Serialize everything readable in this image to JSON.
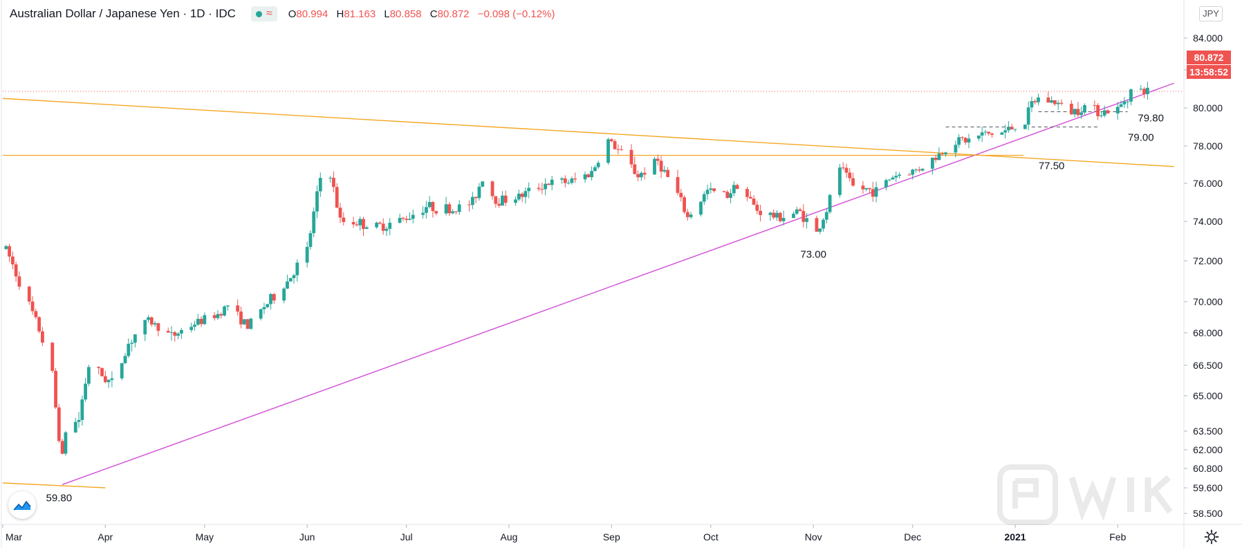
{
  "header": {
    "title": "Australian Dollar / Japanese Yen · 1D · IDC",
    "status_icon": "market-status-dot-icon",
    "wave_icon": "wave-icon",
    "ohlc": {
      "o_label": "O",
      "o_value": "80.994",
      "h_label": "H",
      "h_value": "81.163",
      "l_label": "L",
      "l_value": "80.858",
      "c_label": "C",
      "c_value": "80.872",
      "change": "−0.098 (−0.12%)"
    }
  },
  "currency_badge": "JPY",
  "price_label": "80.872",
  "countdown_label": "13:58:52",
  "colors": {
    "bull": "#26a69a",
    "bear": "#ef5350",
    "trendline_support": "#d24cd7",
    "trendline_orange": "#f5a623",
    "price_line": "#ef5350",
    "axis_text": "#131722"
  },
  "chart_data": {
    "type": "candlestick",
    "symbol": "AUDJPY",
    "interval": "1D",
    "x_range": [
      "2020-03-01",
      "2021-02-21"
    ],
    "y_ticks": [
      84.0,
      82.0,
      80.0,
      78.0,
      76.0,
      74.0,
      72.0,
      70.0,
      68.0,
      66.5,
      65.0,
      63.5,
      62.0,
      60.8,
      59.6,
      58.5
    ],
    "y_tick_labels": [
      "84.000",
      "82.000",
      "80.000",
      "78.000",
      "76.000",
      "74.000",
      "72.000",
      "70.000",
      "68.000",
      "66.500",
      "65.000",
      "63.500",
      "62.000",
      "60.800",
      "59.600",
      "58.500"
    ],
    "x_ticks": [
      {
        "date": "2020-03-01",
        "label": "Mar"
      },
      {
        "date": "2020-04-01",
        "label": "Apr"
      },
      {
        "date": "2020-05-01",
        "label": "May"
      },
      {
        "date": "2020-06-01",
        "label": "Jun"
      },
      {
        "date": "2020-07-01",
        "label": "Jul"
      },
      {
        "date": "2020-08-01",
        "label": "Aug"
      },
      {
        "date": "2020-09-01",
        "label": "Sep"
      },
      {
        "date": "2020-10-01",
        "label": "Oct"
      },
      {
        "date": "2020-11-01",
        "label": "Nov"
      },
      {
        "date": "2020-12-01",
        "label": "Dec"
      },
      {
        "date": "2021-01-01",
        "label": "2021"
      },
      {
        "date": "2021-02-01",
        "label": "Feb"
      }
    ],
    "price_path": [
      [
        "2020-03-02",
        72.6
      ],
      [
        "2020-03-05",
        71.4
      ],
      [
        "2020-03-09",
        69.8
      ],
      [
        "2020-03-12",
        68.2
      ],
      [
        "2020-03-16",
        66.0
      ],
      [
        "2020-03-19",
        61.5
      ],
      [
        "2020-03-20",
        63.5
      ],
      [
        "2020-03-24",
        64.0
      ],
      [
        "2020-03-27",
        66.5
      ],
      [
        "2020-03-31",
        66.0
      ],
      [
        "2020-04-03",
        65.6
      ],
      [
        "2020-04-08",
        67.5
      ],
      [
        "2020-04-14",
        68.8
      ],
      [
        "2020-04-21",
        67.8
      ],
      [
        "2020-04-28",
        68.6
      ],
      [
        "2020-05-05",
        69.2
      ],
      [
        "2020-05-08",
        69.8
      ],
      [
        "2020-05-14",
        68.4
      ],
      [
        "2020-05-19",
        69.7
      ],
      [
        "2020-05-26",
        71.0
      ],
      [
        "2020-06-01",
        72.5
      ],
      [
        "2020-06-05",
        76.3
      ],
      [
        "2020-06-08",
        76.5
      ],
      [
        "2020-06-11",
        74.0
      ],
      [
        "2020-06-15",
        74.0
      ],
      [
        "2020-06-22",
        73.7
      ],
      [
        "2020-06-30",
        74.1
      ],
      [
        "2020-07-07",
        74.8
      ],
      [
        "2020-07-15",
        74.6
      ],
      [
        "2020-07-21",
        75.0
      ],
      [
        "2020-07-24",
        76.3
      ],
      [
        "2020-07-28",
        75.1
      ],
      [
        "2020-08-04",
        75.3
      ],
      [
        "2020-08-12",
        76.0
      ],
      [
        "2020-08-20",
        76.1
      ],
      [
        "2020-08-26",
        76.6
      ],
      [
        "2020-08-31",
        78.3
      ],
      [
        "2020-09-04",
        77.6
      ],
      [
        "2020-09-09",
        76.4
      ],
      [
        "2020-09-15",
        77.2
      ],
      [
        "2020-09-21",
        75.4
      ],
      [
        "2020-09-24",
        74.2
      ],
      [
        "2020-09-30",
        75.6
      ],
      [
        "2020-10-06",
        75.4
      ],
      [
        "2020-10-09",
        76.0
      ],
      [
        "2020-10-15",
        74.6
      ],
      [
        "2020-10-21",
        74.2
      ],
      [
        "2020-10-28",
        74.5
      ],
      [
        "2020-11-02",
        73.4
      ],
      [
        "2020-11-05",
        74.6
      ],
      [
        "2020-11-09",
        76.9
      ],
      [
        "2020-11-13",
        75.8
      ],
      [
        "2020-11-20",
        75.6
      ],
      [
        "2020-11-25",
        76.4
      ],
      [
        "2020-12-02",
        76.7
      ],
      [
        "2020-12-08",
        77.4
      ],
      [
        "2020-12-14",
        78.3
      ],
      [
        "2020-12-18",
        78.3
      ],
      [
        "2020-12-22",
        78.6
      ],
      [
        "2020-12-28",
        78.7
      ],
      [
        "2021-01-04",
        79.3
      ],
      [
        "2021-01-06",
        80.2
      ],
      [
        "2021-01-08",
        80.5
      ],
      [
        "2021-01-13",
        80.3
      ],
      [
        "2021-01-18",
        79.8
      ],
      [
        "2021-01-22",
        80.1
      ],
      [
        "2021-01-27",
        79.8
      ],
      [
        "2021-02-01",
        79.9
      ],
      [
        "2021-02-05",
        80.9
      ],
      [
        "2021-02-10",
        80.872
      ]
    ],
    "horizontal_levels": [
      {
        "name": "last-price",
        "price": 80.872,
        "style": "dotted"
      },
      {
        "name": "resistance",
        "price": 77.5,
        "style": "solid"
      }
    ],
    "trendlines": [
      {
        "name": "support",
        "from": [
          "2020-03-19",
          59.8
        ],
        "to": [
          "2021-02-18",
          81.3
        ],
        "color": "magenta"
      },
      {
        "name": "descending",
        "from": [
          "2020-03-01",
          80.5
        ],
        "to": [
          "2021-02-18",
          76.9
        ],
        "color": "orange"
      },
      {
        "name": "low-line",
        "from": [
          "2020-03-01",
          59.9
        ],
        "to": [
          "2020-04-01",
          59.6
        ],
        "color": "orange"
      }
    ],
    "dashed_levels": [
      {
        "price": 79.0,
        "from": "2021-01-06",
        "to": "2021-01-26"
      },
      {
        "price": 79.8,
        "from": "2021-01-08",
        "to": "2021-02-04"
      },
      {
        "price": 79.0,
        "from": "2020-12-11",
        "to": "2020-12-29"
      }
    ],
    "annotations": [
      {
        "text": "59.80",
        "date": "2020-03-18",
        "price": 59.8
      },
      {
        "text": "73.00",
        "date": "2020-11-01",
        "price": 73.0
      },
      {
        "text": "77.50",
        "date": "2021-01-12",
        "price": 77.5
      },
      {
        "text": "79.00",
        "date": "2021-02-08",
        "price": 79.0
      },
      {
        "text": "79.80",
        "date": "2021-02-11",
        "price": 79.8
      }
    ]
  }
}
